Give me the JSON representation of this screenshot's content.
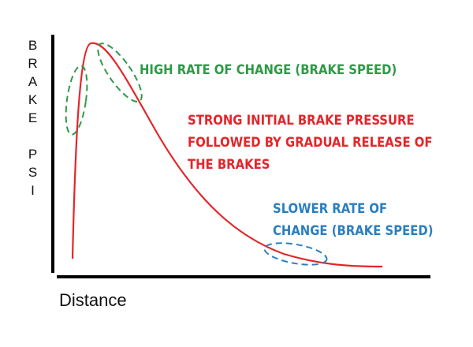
{
  "y_axis_label": "BRAKE PSI",
  "x_axis_label": "Distance",
  "annotations": {
    "high_rate": "HIGH RATE OF CHANGE (BRAKE SPEED)",
    "main": [
      "STRONG INITIAL BRAKE PRESSURE",
      "FOLLOWED BY GRADUAL RELEASE OF",
      "THE BRAKES"
    ],
    "slow_rate": [
      "SLOWER RATE OF",
      "CHANGE (BRAKE SPEED)"
    ]
  }
}
